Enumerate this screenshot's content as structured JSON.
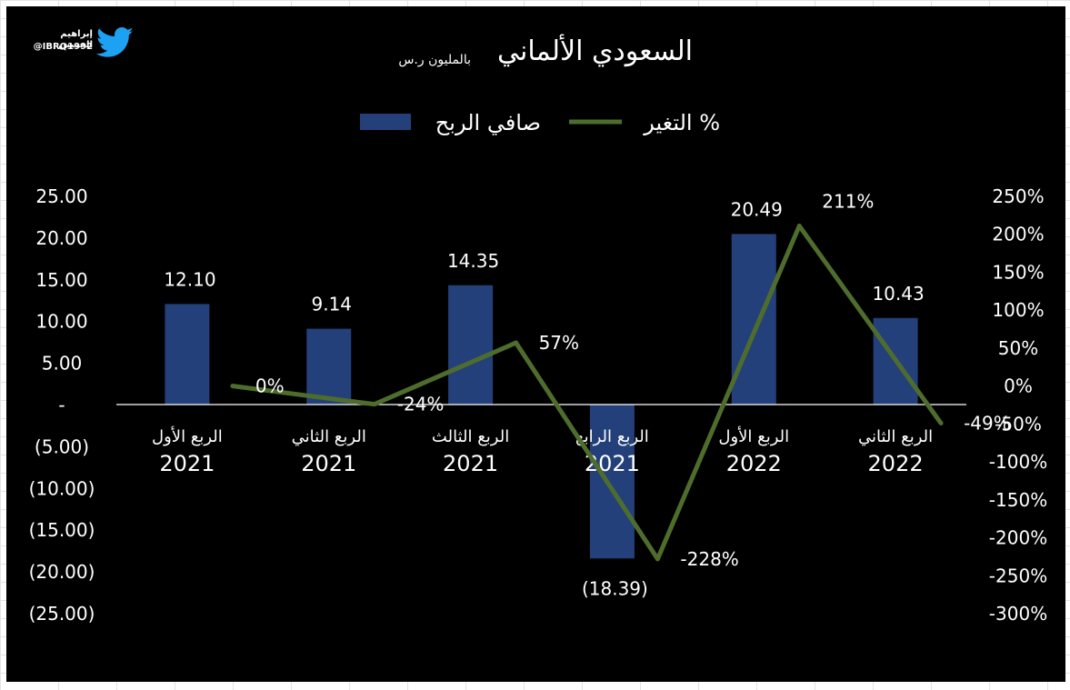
{
  "credit": {
    "name": "إبراهيم الحسين",
    "handle": "@IBRQ1992"
  },
  "chart_data": {
    "type": "bar",
    "title": "السعودي الألماني",
    "subtitle": "بالمليون ر.س",
    "categories": [
      [
        "الربع الأول",
        "2021"
      ],
      [
        "الربع الثاني",
        "2021"
      ],
      [
        "الربع الثالث",
        "2021"
      ],
      [
        "الربع الرابع",
        "2021"
      ],
      [
        "الربع الأول",
        "2022"
      ],
      [
        "الربع الثاني",
        "2022"
      ]
    ],
    "series": [
      {
        "name": "صافي الربح",
        "type": "bar",
        "axis": "left",
        "color": "#24407a",
        "values": [
          12.1,
          9.14,
          14.35,
          -18.39,
          20.49,
          10.43
        ],
        "labels": [
          "12.10",
          "9.14",
          "14.35",
          "(18.39)",
          "20.49",
          "10.43"
        ]
      },
      {
        "name": "التغير %",
        "type": "line",
        "axis": "right",
        "color": "#4e6d2d",
        "values": [
          0,
          -24,
          57,
          -228,
          211,
          -49
        ],
        "labels": [
          "0%",
          "-24%",
          "57%",
          "-228%",
          "211%",
          "-49%"
        ]
      }
    ],
    "y_left": {
      "min": -25,
      "max": 25,
      "step": 5,
      "ticks": [
        "25.00",
        "20.00",
        "15.00",
        "10.00",
        "5.00",
        "-",
        "(5.00)",
        "(10.00)",
        "(15.00)",
        "(20.00)",
        "(25.00)"
      ]
    },
    "y_right": {
      "min": -300,
      "max": 250,
      "step": 50,
      "ticks": [
        "250%",
        "200%",
        "150%",
        "100%",
        "50%",
        "0%",
        "-50%",
        "-100%",
        "-150%",
        "-200%",
        "-250%",
        "-300%"
      ]
    },
    "legend_position": "top",
    "grid": false
  }
}
